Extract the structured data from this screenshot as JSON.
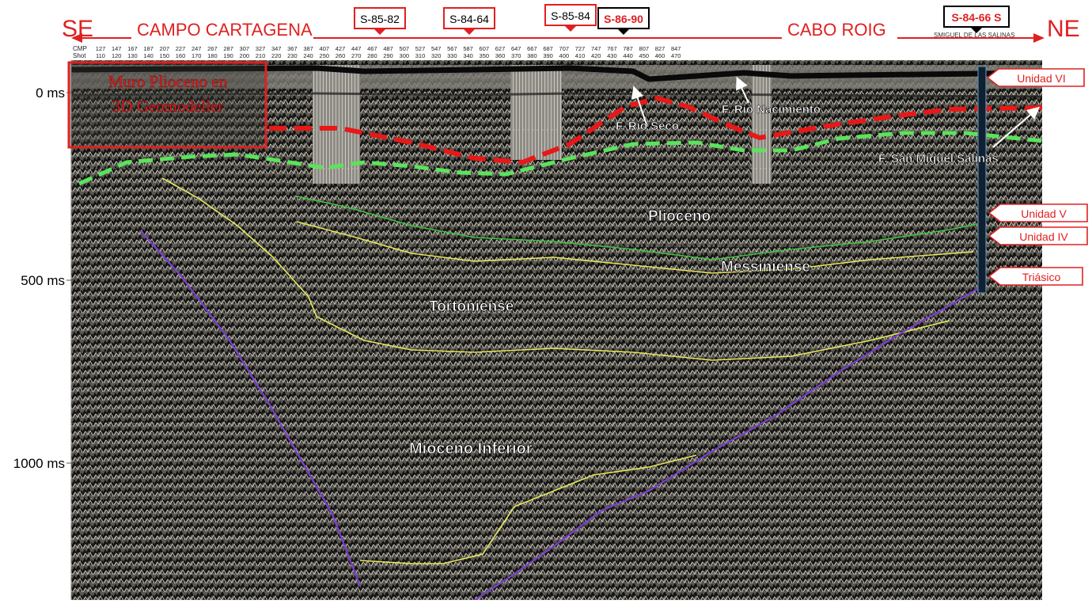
{
  "header": {
    "left_dir": "SE",
    "right_dir": "NE",
    "left_area": "CAMPO CARTAGENA",
    "right_area": "CABO ROIG",
    "header_small_text": "SMIGUEL DE LAS SALINAS"
  },
  "wells": [
    {
      "label": "S-85-82",
      "style": "normal"
    },
    {
      "label": "S-84-64",
      "style": "normal"
    },
    {
      "label": "S-85-84",
      "style": "normal"
    },
    {
      "label": "S-86-90",
      "style": "highlight"
    },
    {
      "label": "S-84-66 S",
      "style": "highlight"
    }
  ],
  "axis": {
    "cmp_label": "CMP",
    "shot_label": "Shot",
    "cmp_values": [
      "127",
      "147",
      "167",
      "187",
      "207",
      "227",
      "247",
      "267",
      "287",
      "307",
      "327",
      "347",
      "367",
      "387",
      "407",
      "427",
      "447",
      "467",
      "487",
      "507",
      "527",
      "547",
      "567",
      "587",
      "607",
      "627",
      "647",
      "667",
      "687",
      "707",
      "727",
      "747",
      "767",
      "787",
      "807",
      "827",
      "847"
    ],
    "shot_values": [
      "110",
      "120",
      "130",
      "140",
      "150",
      "160",
      "170",
      "180",
      "190",
      "200",
      "210",
      "220",
      "230",
      "240",
      "250",
      "260",
      "270",
      "280",
      "290",
      "300",
      "310",
      "320",
      "330",
      "340",
      "350",
      "360",
      "370",
      "380",
      "390",
      "400",
      "410",
      "420",
      "430",
      "440",
      "450",
      "460",
      "470"
    ],
    "time_labels": [
      "0 ms",
      "500 ms",
      "1000 ms"
    ]
  },
  "callout": {
    "line1": "Muro Plioceno en",
    "line2": "3D Geomodeller"
  },
  "units": [
    {
      "label": "Unidad VI"
    },
    {
      "label": "Unidad V"
    },
    {
      "label": "Unidad IV"
    },
    {
      "label": "Triásico"
    }
  ],
  "formations": [
    {
      "label": "F. Rio Seco"
    },
    {
      "label": "F. Rio Nacimiento"
    },
    {
      "label": "F. San Miguel Salinas"
    }
  ],
  "strata": [
    {
      "label": "Plioceno"
    },
    {
      "label": "Messiniense"
    },
    {
      "label": "Tortoniense"
    },
    {
      "label": "Mioceno Inferior"
    }
  ],
  "colors": {
    "arrow_red": "#e02020",
    "horizon_red": "#e81818",
    "horizon_green": "#5be35b",
    "horizon_yellow": "#e6e65a",
    "fault_purple": "#7b3fd0",
    "seismic_bg": "#4a4840"
  }
}
